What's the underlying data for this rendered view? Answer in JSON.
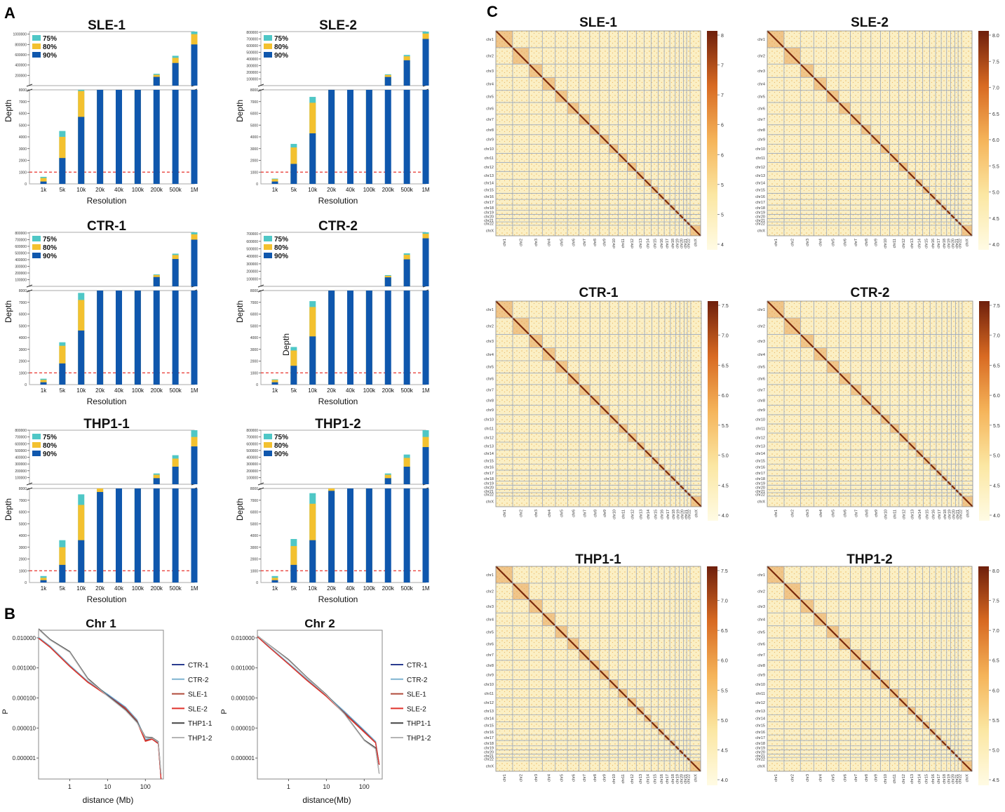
{
  "panel_labels": {
    "a": "A",
    "b": "B",
    "c": "C"
  },
  "colors": {
    "p75": "#4fc7c6",
    "p80": "#f3c12f",
    "p90": "#0f57ad",
    "threshold": "#e8322d",
    "CTR-1": "#2a3c8f",
    "CTR-2": "#7fb3d0",
    "SLE-1": "#b04a3a",
    "SLE-2": "#e0322b",
    "THP1-1": "#454545",
    "THP1-2": "#b5b5b5"
  },
  "chart_data": [
    {
      "type": "bar",
      "title": "SLE-1",
      "xlabel": "Resolution",
      "ylabel": "Depth",
      "legend": [
        "75%",
        "80%",
        "90%"
      ],
      "categories": [
        "1k",
        "5k",
        "10k",
        "20k",
        "40k",
        "100k",
        "200k",
        "500k",
        "1M"
      ],
      "threshold": 1000,
      "lower_ticks": [
        "1000",
        "2000",
        "3000",
        "4000",
        "5000",
        "6000",
        "7000",
        "8000"
      ],
      "upper_ticks": [
        "200000",
        "400000",
        "600000",
        "800000",
        "1000000"
      ],
      "upper_max": 1050000,
      "series": [
        {
          "name": "90%",
          "values": [
            200,
            2200,
            5700,
            8000,
            8000,
            8000,
            170000,
            440000,
            800000
          ]
        },
        {
          "name": "80%",
          "values": [
            500,
            4000,
            7900,
            8000,
            8000,
            8000,
            210000,
            540000,
            1000000
          ]
        },
        {
          "name": "75%",
          "values": [
            600,
            4500,
            8000,
            8000,
            8000,
            8000,
            230000,
            580000,
            1050000
          ]
        }
      ]
    },
    {
      "type": "bar",
      "title": "SLE-2",
      "xlabel": "Resolution",
      "ylabel": "Depth",
      "legend": [
        "75%",
        "80%",
        "90%"
      ],
      "categories": [
        "1k",
        "5k",
        "10k",
        "20k",
        "40k",
        "100k",
        "200k",
        "500k",
        "1M"
      ],
      "threshold": 1000,
      "lower_ticks": [
        "1000",
        "2000",
        "3000",
        "4000",
        "5000",
        "6000",
        "7000",
        "8000"
      ],
      "upper_ticks": [
        "100000",
        "200000",
        "300000",
        "400000",
        "500000",
        "600000",
        "700000",
        "800000"
      ],
      "upper_max": 810000,
      "series": [
        {
          "name": "90%",
          "values": [
            200,
            1700,
            4300,
            8000,
            8000,
            8000,
            130000,
            380000,
            700000
          ]
        },
        {
          "name": "80%",
          "values": [
            400,
            3100,
            6900,
            8000,
            8000,
            8000,
            160000,
            440000,
            780000
          ]
        },
        {
          "name": "75%",
          "values": [
            450,
            3400,
            7400,
            8000,
            8000,
            8000,
            170000,
            460000,
            810000
          ]
        }
      ]
    },
    {
      "type": "bar",
      "title": "CTR-1",
      "xlabel": "Resolution",
      "ylabel": "Depth",
      "legend": [
        "75%",
        "80%",
        "90%"
      ],
      "categories": [
        "1k",
        "5k",
        "10k",
        "20k",
        "40k",
        "100k",
        "200k",
        "500k",
        "1M"
      ],
      "threshold": 1000,
      "lower_ticks": [
        "1000",
        "2000",
        "3000",
        "4000",
        "5000",
        "6000",
        "7000",
        "8000"
      ],
      "upper_ticks": [
        "100000",
        "200000",
        "300000",
        "400000",
        "500000",
        "600000",
        "700000",
        "800000"
      ],
      "upper_max": 810000,
      "series": [
        {
          "name": "90%",
          "values": [
            200,
            1800,
            4600,
            8000,
            8000,
            8000,
            140000,
            410000,
            700000
          ]
        },
        {
          "name": "80%",
          "values": [
            400,
            3300,
            7200,
            8000,
            8000,
            8000,
            170000,
            470000,
            780000
          ]
        },
        {
          "name": "75%",
          "values": [
            500,
            3600,
            7800,
            8000,
            8000,
            8000,
            180000,
            490000,
            810000
          ]
        }
      ]
    },
    {
      "type": "bar",
      "title": "CTR-2",
      "xlabel": "Resolution",
      "ylabel": "Depth",
      "legend": [
        "75%",
        "80%",
        "90%"
      ],
      "categories": [
        "1k",
        "5k",
        "10k",
        "20k",
        "40k",
        "100k",
        "200k",
        "500k",
        "1M"
      ],
      "threshold": 1000,
      "lower_ticks": [
        "1000",
        "2000",
        "3000",
        "4000",
        "5000",
        "6000",
        "7000",
        "8000"
      ],
      "upper_ticks": [
        "100000",
        "200000",
        "300000",
        "400000",
        "500000",
        "600000",
        "700000"
      ],
      "upper_max": 720000,
      "series": [
        {
          "name": "90%",
          "values": [
            200,
            1600,
            4100,
            8000,
            8000,
            8000,
            120000,
            360000,
            640000
          ]
        },
        {
          "name": "80%",
          "values": [
            400,
            2900,
            6600,
            8000,
            8000,
            8000,
            140000,
            420000,
            700000
          ]
        },
        {
          "name": "75%",
          "values": [
            450,
            3200,
            7100,
            8000,
            8000,
            8000,
            150000,
            440000,
            720000
          ]
        }
      ],
      "annotation": "Depth"
    },
    {
      "type": "bar",
      "title": "THP1-1",
      "xlabel": "Resolution",
      "ylabel": "Depth",
      "legend": [
        "75%",
        "80%",
        "90%"
      ],
      "categories": [
        "1k",
        "5k",
        "10k",
        "20k",
        "40k",
        "100k",
        "200k",
        "500k",
        "1M"
      ],
      "threshold": 1000,
      "lower_ticks": [
        "1000",
        "2000",
        "3000",
        "4000",
        "5000",
        "6000",
        "7000",
        "8000"
      ],
      "upper_ticks": [
        "100000",
        "200000",
        "300000",
        "400000",
        "500000",
        "600000",
        "700000",
        "800000"
      ],
      "upper_max": 800000,
      "series": [
        {
          "name": "90%",
          "values": [
            200,
            1500,
            3600,
            7700,
            8000,
            8000,
            90000,
            260000,
            560000
          ]
        },
        {
          "name": "80%",
          "values": [
            400,
            3000,
            6600,
            8000,
            8000,
            8000,
            140000,
            380000,
            700000
          ]
        },
        {
          "name": "75%",
          "values": [
            550,
            3600,
            7500,
            8000,
            8000,
            8000,
            160000,
            430000,
            800000
          ]
        }
      ]
    },
    {
      "type": "bar",
      "title": "THP1-2",
      "xlabel": "Resolution",
      "ylabel": "Depth",
      "legend": [
        "75%",
        "80%",
        "90%"
      ],
      "categories": [
        "1k",
        "5k",
        "10k",
        "20k",
        "40k",
        "100k",
        "200k",
        "500k",
        "1M"
      ],
      "threshold": 1000,
      "lower_ticks": [
        "1000",
        "2000",
        "3000",
        "4000",
        "5000",
        "6000",
        "7000",
        "8000"
      ],
      "upper_ticks": [
        "100000",
        "200000",
        "300000",
        "400000",
        "500000",
        "600000",
        "700000",
        "800000"
      ],
      "upper_max": 800000,
      "series": [
        {
          "name": "90%",
          "values": [
            200,
            1500,
            3600,
            7800,
            8000,
            8000,
            90000,
            260000,
            550000
          ]
        },
        {
          "name": "80%",
          "values": [
            400,
            3100,
            6700,
            8000,
            8000,
            8000,
            140000,
            390000,
            700000
          ]
        },
        {
          "name": "75%",
          "values": [
            550,
            3700,
            7600,
            8000,
            8000,
            8000,
            160000,
            440000,
            800000
          ]
        }
      ]
    },
    {
      "type": "line",
      "title": "Chr 1",
      "xlabel": "distance (Mb)",
      "ylabel": "P",
      "xscale": "log",
      "yscale": "log",
      "xlim": [
        0.15,
        300
      ],
      "ylim": [
        2e-07,
        0.018
      ],
      "x_ticks": [
        "1",
        "10",
        "100"
      ],
      "y_ticks": [
        "0.010000",
        "0.001000",
        "0.000100",
        "0.000010",
        "0.000001"
      ],
      "series": [
        {
          "name": "CTR-1",
          "x": [
            0.15,
            0.3,
            1,
            3,
            10,
            30,
            60,
            100,
            150,
            220,
            260
          ],
          "y": [
            0.01,
            0.0052,
            0.0012,
            0.00035,
            0.00013,
            4.8e-05,
            1.8e-05,
            4e-06,
            4.5e-06,
            3.2e-06,
            2e-07
          ]
        },
        {
          "name": "CTR-2",
          "x": [
            0.15,
            0.3,
            1,
            3,
            10,
            30,
            60,
            100,
            150,
            220,
            260
          ],
          "y": [
            0.0105,
            0.0054,
            0.00125,
            0.00036,
            0.000135,
            5e-05,
            1.9e-05,
            4.2e-06,
            4.6e-06,
            3.4e-06,
            2e-07
          ]
        },
        {
          "name": "SLE-1",
          "x": [
            0.15,
            0.3,
            1,
            3,
            10,
            30,
            60,
            100,
            150,
            220,
            260
          ],
          "y": [
            0.0098,
            0.005,
            0.00115,
            0.00034,
            0.00012,
            4.5e-05,
            1.7e-05,
            3.8e-06,
            4.4e-06,
            3e-06,
            2e-07
          ]
        },
        {
          "name": "SLE-2",
          "x": [
            0.15,
            0.3,
            1,
            3,
            10,
            30,
            60,
            100,
            150,
            220,
            260
          ],
          "y": [
            0.0097,
            0.0049,
            0.00112,
            0.00033,
            0.000118,
            4.4e-05,
            1.6e-05,
            3.6e-06,
            4.2e-06,
            3e-06,
            2e-07
          ]
        },
        {
          "name": "THP1-1",
          "x": [
            0.15,
            0.3,
            1,
            3,
            10,
            30,
            60,
            100,
            150,
            220,
            260
          ],
          "y": [
            0.02,
            0.009,
            0.0035,
            0.00045,
            0.00012,
            4e-05,
            1.6e-05,
            5e-06,
            4.8e-06,
            3.5e-06,
            3e-07
          ]
        },
        {
          "name": "THP1-2",
          "x": [
            0.15,
            0.3,
            1,
            3,
            10,
            30,
            60,
            100,
            150,
            220,
            260
          ],
          "y": [
            0.019,
            0.0085,
            0.0033,
            0.00042,
            0.000115,
            3.8e-05,
            1.5e-05,
            4.8e-06,
            4.6e-06,
            3.4e-06,
            3e-07
          ]
        }
      ]
    },
    {
      "type": "line",
      "title": "Chr 2",
      "xlabel": "distance(Mb)",
      "ylabel": "P",
      "xscale": "log",
      "yscale": "log",
      "xlim": [
        0.15,
        300
      ],
      "ylim": [
        2e-07,
        0.018
      ],
      "x_ticks": [
        "1",
        "10",
        "100"
      ],
      "y_ticks": [
        "0.010000",
        "0.001000",
        "0.000100",
        "0.000010",
        "0.000001"
      ],
      "series": [
        {
          "name": "CTR-1",
          "x": [
            0.15,
            0.3,
            1,
            3,
            10,
            30,
            100,
            200,
            250
          ],
          "y": [
            0.0115,
            0.0052,
            0.0014,
            0.00042,
            0.00012,
            3.5e-05,
            8e-06,
            3.5e-06,
            6e-07
          ]
        },
        {
          "name": "CTR-2",
          "x": [
            0.15,
            0.3,
            1,
            3,
            10,
            30,
            100,
            200,
            250
          ],
          "y": [
            0.0115,
            0.0053,
            0.00145,
            0.00043,
            0.000125,
            3.6e-05,
            8.5e-06,
            3.6e-06,
            6e-07
          ]
        },
        {
          "name": "SLE-1",
          "x": [
            0.15,
            0.3,
            1,
            3,
            10,
            30,
            100,
            200,
            250
          ],
          "y": [
            0.011,
            0.005,
            0.00135,
            0.0004,
            0.000115,
            3.2e-05,
            7.5e-06,
            3.3e-06,
            6e-07
          ]
        },
        {
          "name": "SLE-2",
          "x": [
            0.15,
            0.3,
            1,
            3,
            10,
            30,
            100,
            200,
            250
          ],
          "y": [
            0.011,
            0.005,
            0.00133,
            0.00039,
            0.000112,
            3e-05,
            7.2e-06,
            3.2e-06,
            6e-07
          ]
        },
        {
          "name": "THP1-1",
          "x": [
            0.15,
            0.3,
            1,
            3,
            10,
            30,
            100,
            200,
            250
          ],
          "y": [
            0.0118,
            0.006,
            0.0019,
            0.0005,
            0.00013,
            3e-05,
            4e-06,
            2.2e-06,
            3e-07
          ]
        },
        {
          "name": "THP1-2",
          "x": [
            0.15,
            0.3,
            1,
            3,
            10,
            30,
            100,
            200,
            250
          ],
          "y": [
            0.0118,
            0.0059,
            0.0018,
            0.00048,
            0.000125,
            2.9e-05,
            3.8e-06,
            2e-06,
            3e-07
          ]
        }
      ]
    },
    {
      "type": "heatmap",
      "title": "SLE-1",
      "vmin": 4.0,
      "vmax": 8.0,
      "colorbar_ticks": [
        "8",
        "7",
        "7",
        "6",
        "6",
        "5",
        "5",
        "4"
      ]
    },
    {
      "type": "heatmap",
      "title": "SLE-2",
      "vmin": 4.0,
      "vmax": 8.0,
      "colorbar_ticks": [
        "8.0",
        "7.5",
        "7.0",
        "6.5",
        "6.0",
        "5.5",
        "5.0",
        "4.5",
        "4.0"
      ]
    },
    {
      "type": "heatmap",
      "title": "CTR-1",
      "vmin": 4.0,
      "vmax": 7.5,
      "colorbar_ticks": [
        "7.5",
        "7.0",
        "6.5",
        "6.0",
        "5.5",
        "5.0",
        "4.5",
        "4.0"
      ]
    },
    {
      "type": "heatmap",
      "title": "CTR-2",
      "vmin": 4.0,
      "vmax": 7.5,
      "colorbar_ticks": [
        "7.5",
        "7.0",
        "6.5",
        "6.0",
        "5.5",
        "5.0",
        "4.5",
        "4.0"
      ]
    },
    {
      "type": "heatmap",
      "title": "THP1-1",
      "vmin": 4.0,
      "vmax": 7.5,
      "colorbar_ticks": [
        "7.5",
        "7.0",
        "6.5",
        "6.0",
        "5.5",
        "5.0",
        "4.5",
        "4.0"
      ]
    },
    {
      "type": "heatmap",
      "title": "THP1-2",
      "vmin": 4.5,
      "vmax": 8.0,
      "colorbar_ticks": [
        "8.0",
        "7.5",
        "7.0",
        "6.5",
        "6.0",
        "5.5",
        "5.0",
        "4.5"
      ]
    }
  ],
  "chromosomes": [
    "chr1",
    "chr2",
    "chr3",
    "chr4",
    "chr5",
    "chr6",
    "chr7",
    "chr8",
    "chr9",
    "chr10",
    "chr11",
    "chr12",
    "chr13",
    "chr14",
    "chr15",
    "chr16",
    "chr17",
    "chr18",
    "chr19",
    "chr20",
    "chr21",
    "chr22",
    "chrX"
  ],
  "chrom_sizes": [
    249,
    243,
    198,
    191,
    181,
    171,
    159,
    146,
    141,
    136,
    135,
    134,
    115,
    107,
    102,
    90,
    83,
    80,
    59,
    64,
    47,
    51,
    156
  ]
}
